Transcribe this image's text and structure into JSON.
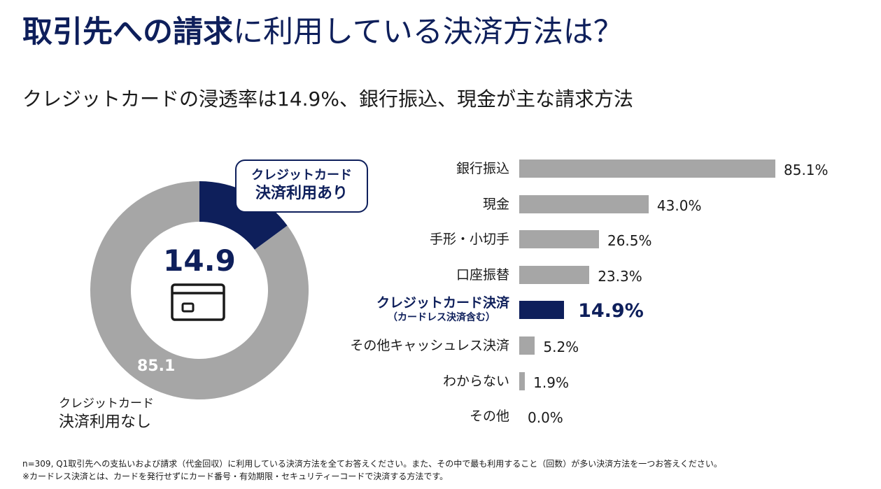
{
  "title": {
    "bold": "取引先への請求",
    "rest": "に利用している決済方法は？"
  },
  "subtitle": "クレジットカードの浸透率は14.9%、銀行振込、現金が主な請求方法",
  "colors": {
    "navy": "#0e1f5b",
    "gray": "#a6a6a6"
  },
  "chart_data": [
    {
      "type": "pie",
      "donut": true,
      "slices": [
        {
          "name": "クレジットカード決済利用あり",
          "value": 14.9
        },
        {
          "name": "クレジットカード決済利用なし",
          "value": 85.1
        }
      ],
      "center_label": "14.9",
      "slice_label": "85.1",
      "callout": {
        "line1": "クレジットカード",
        "line2": "決済利用あり"
      },
      "outside_label": {
        "line1": "クレジットカード",
        "line2": "決済利用なし"
      },
      "center_icon": "credit-card-icon"
    },
    {
      "type": "bar",
      "orientation": "horizontal",
      "xlim": [
        0,
        100
      ],
      "categories": [
        "銀行振込",
        "現金",
        "手形・小切手",
        "口座振替",
        "クレジットカード決済",
        "その他キャッシュレス決済",
        "わからない",
        "その他"
      ],
      "category_notes": [
        "",
        "",
        "",
        "",
        "（カードレス決済含む）",
        "",
        "",
        ""
      ],
      "values": [
        85.1,
        43.0,
        26.5,
        23.3,
        14.9,
        5.2,
        1.9,
        0.0
      ],
      "value_labels": [
        "85.1%",
        "43.0%",
        "26.5%",
        "23.3%",
        "14.9%",
        "5.2%",
        "1.9%",
        "0.0%"
      ],
      "highlight_index": 4
    }
  ],
  "footnotes": [
    "n=309, Q1取引先への支払いおよび請求（代金回収）に利用している決済方法を全てお答えください。また、その中で最も利用すること（回数）が多い決済方法を一つお答えください。",
    "※カードレス決済とは、カードを発行せずにカード番号・有効期限・セキュリティーコードで決済する方法です。"
  ]
}
